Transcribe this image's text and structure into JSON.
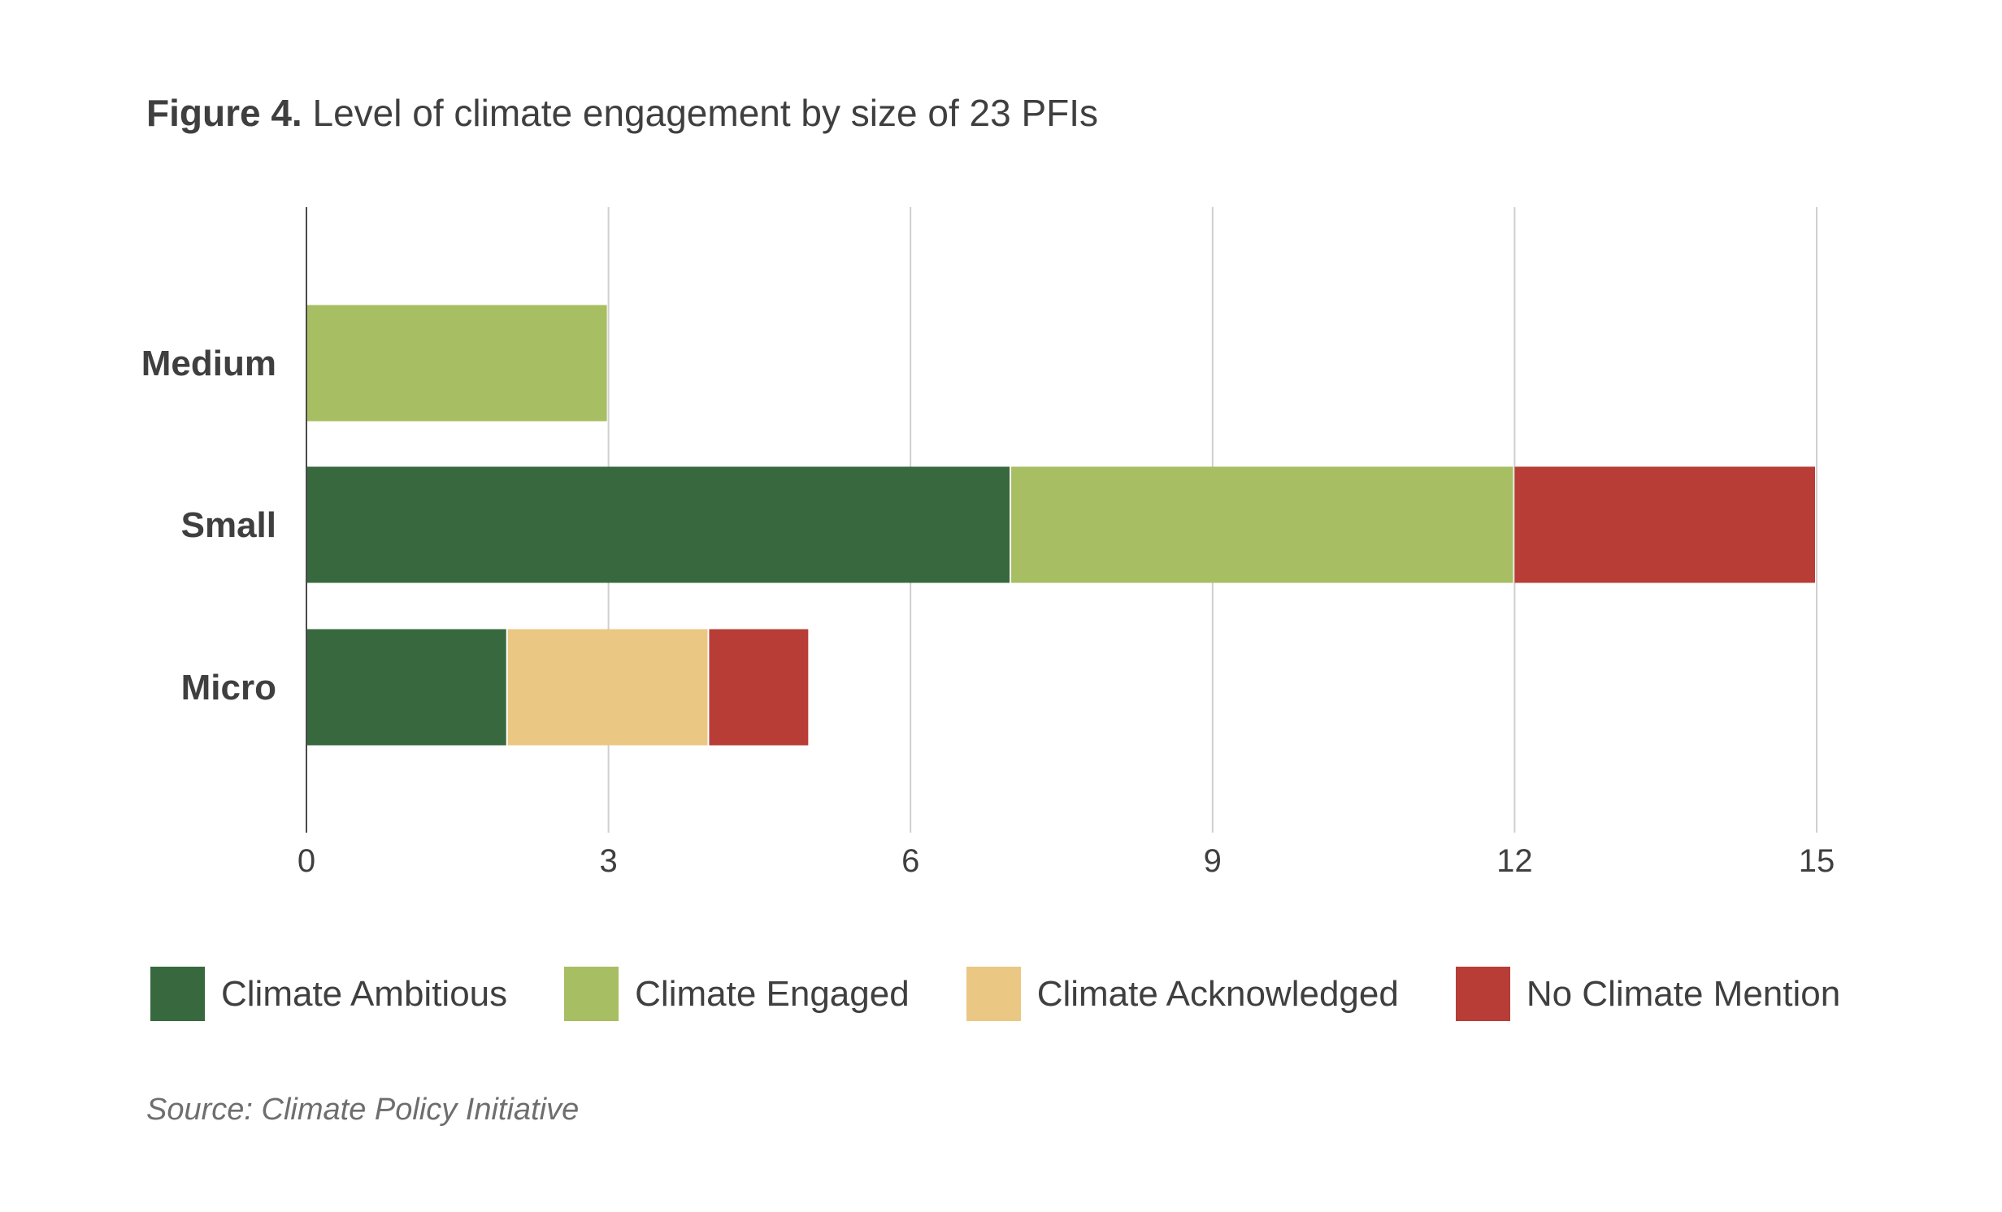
{
  "title": {
    "figure_label": "Figure 4.",
    "text": "Level of climate engagement by size of 23 PFIs"
  },
  "source": "Source: Climate Policy Initiative",
  "chart_data": {
    "type": "bar",
    "orientation": "horizontal",
    "stacked": true,
    "title": "Figure 4. Level of climate engagement by size of 23 PFIs",
    "categories": [
      "Medium",
      "Small",
      "Micro"
    ],
    "series": [
      {
        "name": "Climate Ambitious",
        "color": "#38693e",
        "values": [
          0,
          7,
          2
        ]
      },
      {
        "name": "Climate Engaged",
        "color": "#a8be62",
        "values": [
          3,
          5,
          0
        ]
      },
      {
        "name": "Climate Acknowledged",
        "color": "#eac783",
        "values": [
          0,
          0,
          2
        ]
      },
      {
        "name": "No Climate Mention",
        "color": "#b73d36",
        "values": [
          0,
          3,
          1
        ]
      }
    ],
    "xlim": [
      0,
      15
    ],
    "xticks": [
      0,
      3,
      6,
      9,
      12,
      15
    ],
    "xlabel": "",
    "ylabel": "",
    "grid": true,
    "legend_position": "bottom"
  }
}
